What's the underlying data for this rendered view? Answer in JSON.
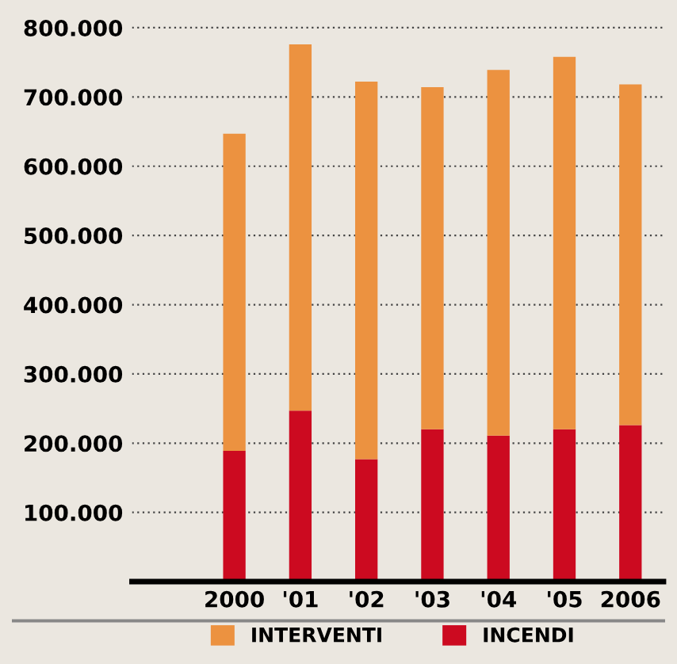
{
  "chart_data": {
    "type": "bar",
    "stacked": true,
    "categories": [
      "2000",
      "'01",
      "'02",
      "'03",
      "'04",
      "'05",
      "2006"
    ],
    "series": [
      {
        "name": "INCENDI",
        "color": "#cc0a20",
        "values": [
          189000,
          247000,
          177000,
          220000,
          211000,
          220000,
          226000
        ]
      },
      {
        "name": "INTERVENTI",
        "color": "#ec9240",
        "values": [
          458000,
          529000,
          545000,
          494000,
          528000,
          538000,
          492000
        ]
      }
    ],
    "ylim": [
      0,
      840000
    ],
    "yticks": [
      {
        "value": 100000,
        "label": "100.000"
      },
      {
        "value": 200000,
        "label": "200.000"
      },
      {
        "value": 300000,
        "label": "300.000"
      },
      {
        "value": 400000,
        "label": "400.000"
      },
      {
        "value": 500000,
        "label": "500.000"
      },
      {
        "value": 600000,
        "label": "600.000"
      },
      {
        "value": 700000,
        "label": "700.000"
      },
      {
        "value": 800000,
        "label": "800.000"
      }
    ],
    "grid": "y",
    "legend": "bottom"
  }
}
